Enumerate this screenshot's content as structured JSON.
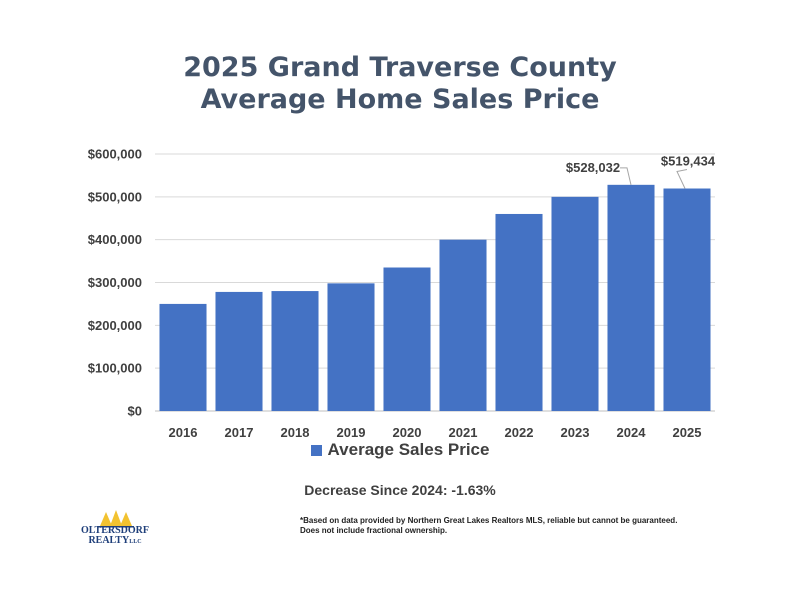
{
  "chart_data": {
    "type": "bar",
    "title_lines": [
      "2025 Grand Traverse County",
      "Average Home Sales Price"
    ],
    "categories": [
      "2016",
      "2017",
      "2018",
      "2019",
      "2020",
      "2021",
      "2022",
      "2023",
      "2024",
      "2025"
    ],
    "series": [
      {
        "name": "Average Sales Price",
        "values": [
          250000,
          278000,
          280000,
          298000,
          335000,
          400000,
          460000,
          500000,
          528032,
          519434
        ]
      }
    ],
    "data_labels": [
      {
        "index": 8,
        "text": "$528,032"
      },
      {
        "index": 9,
        "text": "$519,434"
      }
    ],
    "ylim": [
      0,
      600000
    ],
    "yticks": [
      0,
      100000,
      200000,
      300000,
      400000,
      500000,
      600000
    ],
    "ytick_labels": [
      "$0",
      "$100,000",
      "$200,000",
      "$300,000",
      "$400,000",
      "$500,000",
      "$600,000"
    ],
    "grid": true,
    "legend_position": "bottom",
    "bar_color": "#4472c4"
  },
  "subnote": "Decrease Since 2024: -1.63%",
  "footnote": "*Based on data provided by Northern Great Lakes Realtors MLS, reliable but cannot be guaranteed. Does not include fractional ownership.",
  "logo": {
    "line1": "OLTERSDORF",
    "line2": "REALTY",
    "suffix": "LLC",
    "icon": "tree-logo-icon",
    "color": "#1f3f7a",
    "accent": "#f2c230"
  }
}
